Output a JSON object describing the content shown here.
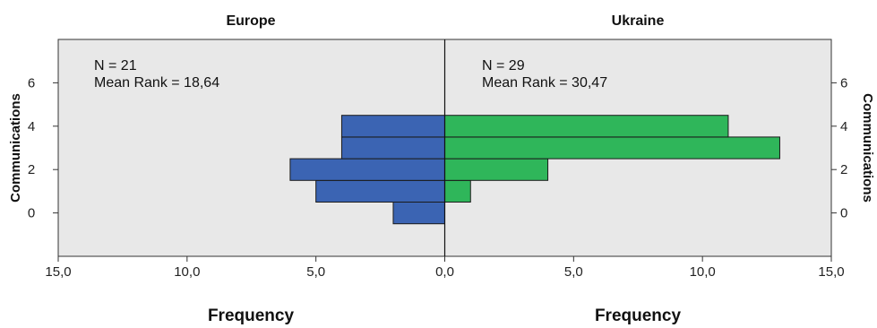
{
  "chart_data": {
    "type": "bar",
    "orientation": "horizontal",
    "layout": "population-pyramid",
    "bins": [
      0,
      1,
      2,
      3,
      4,
      5
    ],
    "series": [
      {
        "name": "Europe",
        "values": [
          2,
          5,
          6,
          4,
          4,
          0
        ],
        "color": "#3b64b3",
        "side": "left",
        "stats": [
          "N = 21",
          "Mean Rank = 18,64"
        ]
      },
      {
        "name": "Ukraine",
        "values": [
          0,
          1,
          4,
          13,
          11,
          0
        ],
        "color": "#2fb65a",
        "side": "right",
        "stats": [
          "N = 29",
          "Mean Rank = 30,47"
        ]
      }
    ],
    "xlabel": "Frequency",
    "ylabel": "Communications",
    "xlim": [
      0,
      15
    ],
    "xticks": [
      "15,0",
      "10,0",
      "5,0",
      "0,0",
      "5,0",
      "10,0",
      "15,0"
    ],
    "ylim": [
      -2,
      8
    ],
    "yticks": [
      0,
      2,
      4,
      6
    ],
    "plot_background": "#e8e8e8",
    "grid": false
  }
}
